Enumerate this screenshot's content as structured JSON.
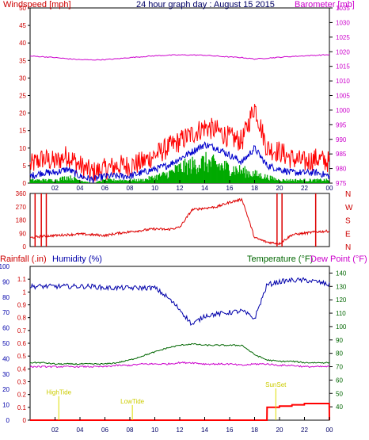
{
  "title": "24 hour graph day : August 15 2015",
  "colors": {
    "red": "#ff0000",
    "darkred": "#aa0000",
    "blue": "#0000aa",
    "green": "#007700",
    "gust": "#ff0000",
    "avg": "#0000cc",
    "calm": "#00aa00",
    "magenta": "#cc00cc",
    "frame": "#000000",
    "hours": "#000066",
    "orange": "#dddd00"
  },
  "hours": [
    "02",
    "04",
    "06",
    "08",
    "10",
    "12",
    "14",
    "16",
    "18",
    "20",
    "22",
    "00"
  ],
  "chart_data": [
    {
      "type": "line",
      "name": "wind-baro",
      "ylabel": "Windspeed [mph]",
      "y2label": "Barometer [mb]",
      "ylim": [
        0,
        50
      ],
      "yticks": [
        0,
        5,
        10,
        15,
        20,
        25,
        30,
        35,
        40,
        45,
        50
      ],
      "y2lim": [
        975,
        1035
      ],
      "y2ticks": [
        975,
        980,
        985,
        990,
        995,
        1000,
        1005,
        1010,
        1015,
        1020,
        1025,
        1030,
        1035
      ],
      "x_hours": [
        0,
        1,
        2,
        3,
        4,
        5,
        6,
        7,
        8,
        9,
        10,
        11,
        12,
        13,
        14,
        15,
        16,
        17,
        18,
        19,
        20,
        21,
        22,
        23,
        24
      ],
      "series": [
        {
          "label": "gust",
          "values": [
            5,
            7,
            6,
            8,
            5,
            3,
            4,
            5,
            5,
            6,
            8,
            10,
            12,
            14,
            16,
            15,
            13,
            12,
            22,
            10,
            9,
            7,
            6,
            7,
            6
          ]
        },
        {
          "label": "average",
          "values": [
            2,
            3,
            3,
            4,
            2,
            1,
            2,
            2,
            2,
            3,
            4,
            5,
            7,
            9,
            11,
            10,
            8,
            6,
            10,
            5,
            4,
            3,
            3,
            3,
            2
          ]
        },
        {
          "label": "calm",
          "values": [
            1,
            1,
            1,
            2,
            1,
            0,
            1,
            1,
            1,
            1,
            2,
            3,
            5,
            6,
            7,
            6,
            5,
            4,
            3,
            2,
            1,
            1,
            1,
            1,
            1
          ]
        },
        {
          "label": "barometer",
          "values": [
            1018.5,
            1018.3,
            1018.0,
            1017.6,
            1017.3,
            1017.2,
            1017.3,
            1017.6,
            1018.0,
            1018.3,
            1018.6,
            1018.8,
            1018.9,
            1018.9,
            1018.8,
            1018.5,
            1018.2,
            1018.0,
            1017.5,
            1017.8,
            1018.1,
            1018.4,
            1018.6,
            1018.8,
            1019.0
          ]
        }
      ]
    },
    {
      "type": "line",
      "name": "direction",
      "ylim": [
        0,
        360
      ],
      "yticks": [
        0,
        90,
        180,
        270,
        360
      ],
      "compass": [
        "N",
        "W",
        "S",
        "E",
        "N"
      ],
      "x_hours": [
        0,
        1,
        2,
        3,
        4,
        5,
        6,
        7,
        8,
        9,
        10,
        11,
        12,
        13,
        14,
        15,
        16,
        17,
        18,
        19,
        20,
        21,
        22,
        23,
        24
      ],
      "series": [
        {
          "label": "direction",
          "values": [
            60,
            70,
            75,
            80,
            85,
            80,
            75,
            90,
            100,
            110,
            120,
            115,
            130,
            250,
            260,
            270,
            300,
            320,
            60,
            30,
            20,
            80,
            90,
            100,
            105
          ]
        }
      ]
    },
    {
      "type": "line",
      "name": "rain-hum-temp",
      "y_rain_label": "Rainfall (.in)",
      "y_hum_label": "Humidity (%)",
      "y_temp_label": "Temperature (°F)",
      "y_dew_label": "Dew Point (°F)",
      "hum_ylim": [
        0,
        100
      ],
      "hum_ticks": [
        0,
        10,
        20,
        30,
        40,
        50,
        60,
        70,
        80,
        90,
        100
      ],
      "rain_ylim": [
        0,
        1.2
      ],
      "rain_ticks": [
        "0",
        "0.1",
        "0.2",
        "0.3",
        "0.4",
        "0.5",
        "0.6",
        "0.7",
        "0.8",
        "0.9",
        "1",
        "1.1"
      ],
      "temp_ylim": [
        30,
        145
      ],
      "temp_ticks": [
        40,
        50,
        60,
        70,
        80,
        90,
        100,
        110,
        120,
        130,
        140
      ],
      "x_hours": [
        0,
        1,
        2,
        3,
        4,
        5,
        6,
        7,
        8,
        9,
        10,
        11,
        12,
        13,
        14,
        15,
        16,
        17,
        18,
        19,
        20,
        21,
        22,
        23,
        24
      ],
      "series": [
        {
          "label": "humidity",
          "values": [
            87,
            87,
            87,
            87,
            87,
            87,
            86,
            86,
            86,
            86,
            86,
            80,
            72,
            62,
            68,
            69,
            70,
            71,
            66,
            88,
            90,
            91,
            91,
            90,
            88
          ]
        },
        {
          "label": "temperature",
          "values": [
            73,
            73,
            72,
            72,
            72,
            72,
            72,
            73,
            75,
            78,
            81,
            84,
            86,
            87,
            86,
            86,
            86,
            86,
            79,
            75,
            74,
            74,
            73,
            73,
            73
          ]
        },
        {
          "label": "dewpoint",
          "values": [
            70,
            70,
            70,
            70,
            70,
            70,
            70,
            71,
            71,
            72,
            72,
            72,
            73,
            73,
            72,
            72,
            72,
            71,
            72,
            72,
            71,
            71,
            70,
            70,
            70
          ]
        },
        {
          "label": "rainfall",
          "values": [
            0,
            0,
            0,
            0,
            0,
            0,
            0,
            0,
            0,
            0,
            0,
            0,
            0,
            0,
            0,
            0,
            0,
            0,
            0,
            0.1,
            0.11,
            0.12,
            0.13,
            0.13,
            0.0
          ]
        }
      ],
      "annotations": [
        {
          "text": "HighTide",
          "hour": 2.3,
          "value": 0.2
        },
        {
          "text": "LowTide",
          "hour": 8.2,
          "value": 0.13
        },
        {
          "text": "SunSet",
          "hour": 19.7,
          "value": 0.26
        }
      ]
    }
  ]
}
